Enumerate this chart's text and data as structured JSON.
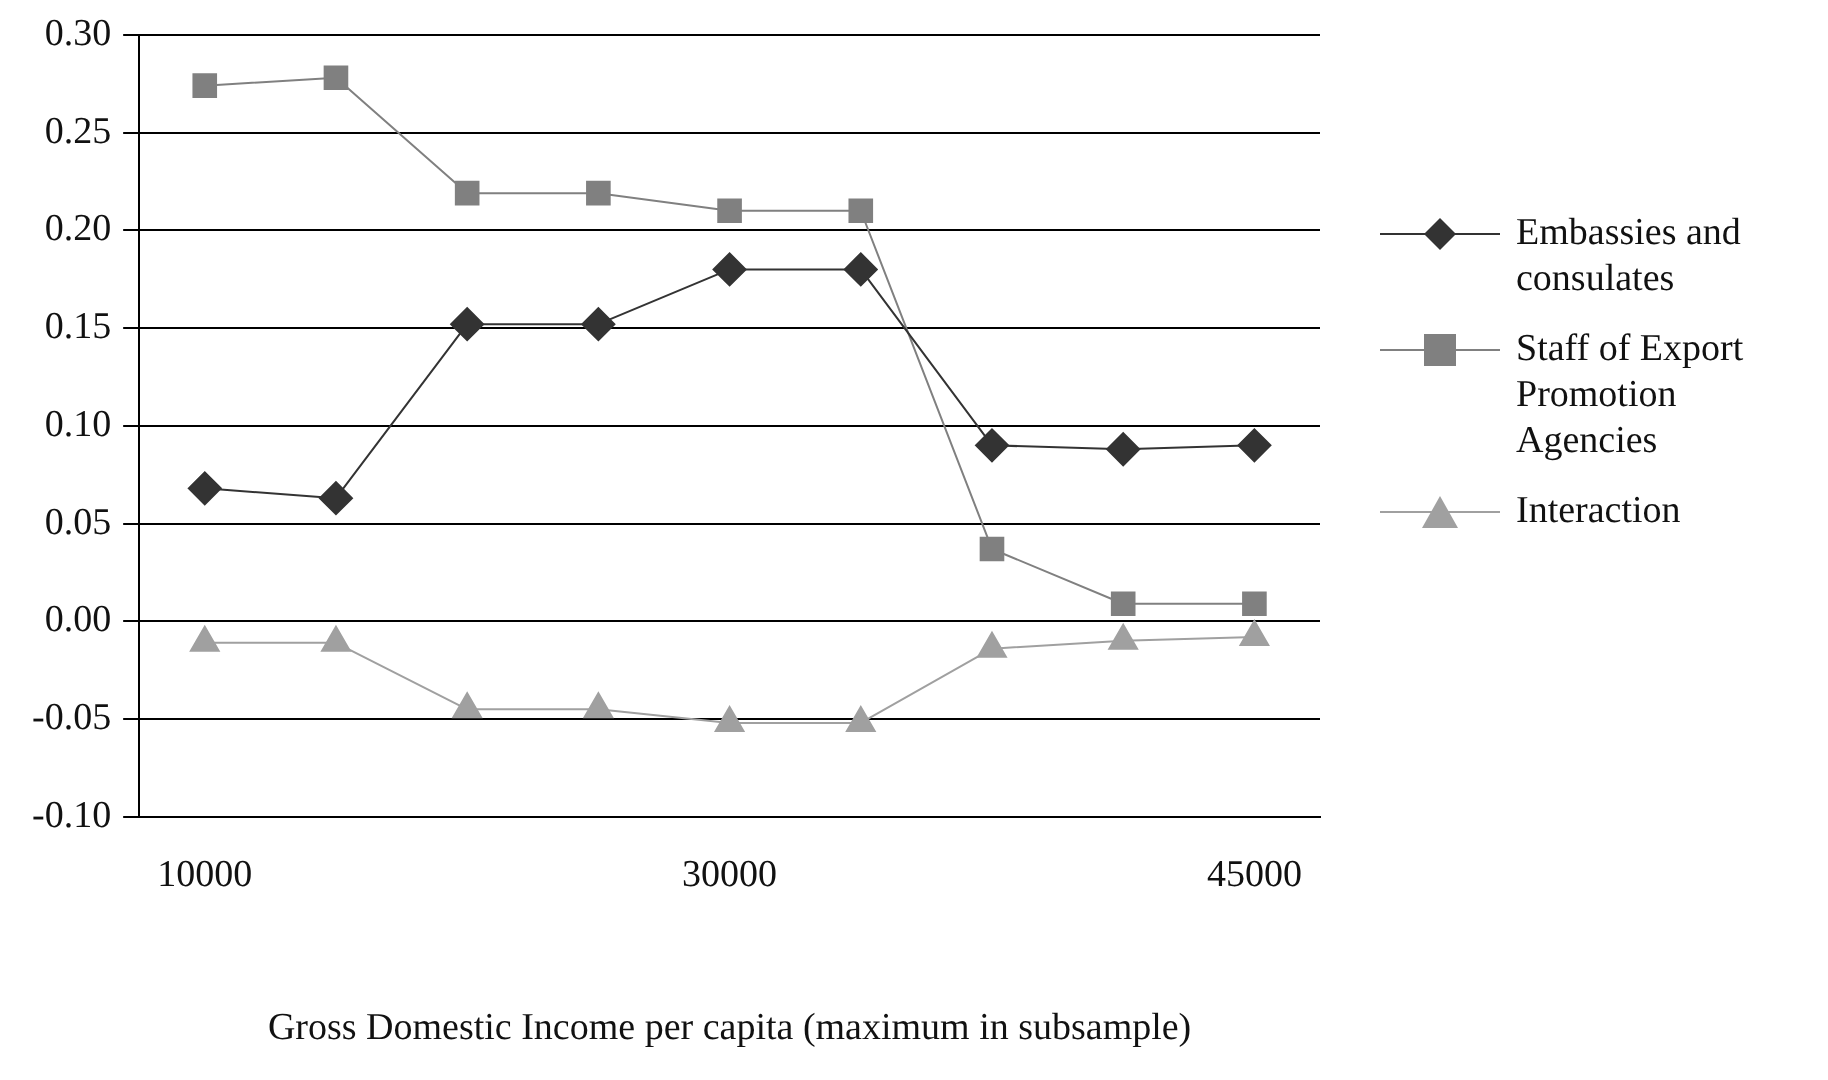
{
  "chart_data": {
    "type": "line",
    "xlabel": "Gross Domestic Income per capita (maximum in subsample)",
    "categories": [
      "10000",
      null,
      null,
      null,
      "30000",
      null,
      null,
      null,
      "45000"
    ],
    "series": [
      {
        "name": "Embassies and consulates",
        "color": "#333333",
        "marker": "diamond",
        "values": [
          0.068,
          0.063,
          0.152,
          0.152,
          0.18,
          0.18,
          0.09,
          0.088,
          0.09
        ]
      },
      {
        "name": "Staff of Export Promotion Agencies",
        "color": "#808080",
        "marker": "square",
        "values": [
          0.274,
          0.278,
          0.219,
          0.219,
          0.21,
          0.21,
          0.037,
          0.009,
          0.009
        ]
      },
      {
        "name": "Interaction",
        "color": "#a0a0a0",
        "marker": "triangle",
        "values": [
          -0.011,
          -0.011,
          -0.045,
          -0.045,
          -0.052,
          -0.052,
          -0.014,
          -0.01,
          -0.008
        ]
      }
    ],
    "ylim": [
      -0.1,
      0.3
    ],
    "yticks": [
      {
        "value": -0.1,
        "label": "-0.10"
      },
      {
        "value": -0.05,
        "label": "-0.05"
      },
      {
        "value": 0,
        "label": "0.00"
      },
      {
        "value": 0.05,
        "label": "0.05"
      },
      {
        "value": 0.1,
        "label": "0.10"
      },
      {
        "value": 0.15,
        "label": "0.15"
      },
      {
        "value": 0.2,
        "label": "0.20"
      },
      {
        "value": 0.25,
        "label": "0.25"
      },
      {
        "value": 0.3,
        "label": "0.30"
      }
    ],
    "grid": "y",
    "legend": "right",
    "line_style": "solid"
  }
}
